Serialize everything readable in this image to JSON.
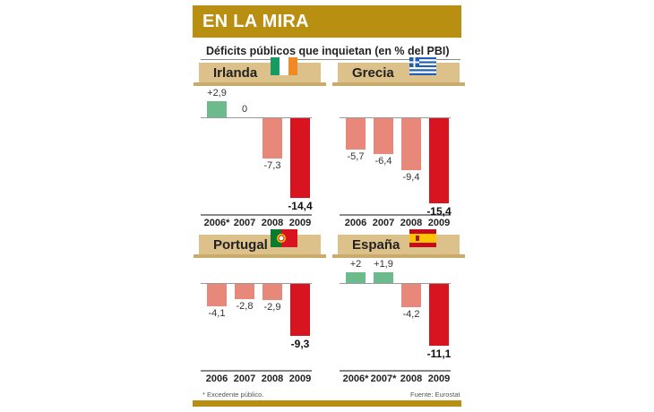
{
  "header": {
    "title": "EN LA MIRA"
  },
  "subtitle": "Déficits públicos que inquietan (en % del PBI)",
  "colors": {
    "header": "#b98f12",
    "banner": "#dcc18a",
    "surplus": "#6dbb8c",
    "deficit": "#e8887a",
    "deficit_2009": "#d7141f"
  },
  "chart_data": [
    {
      "type": "bar",
      "title": "Irlanda",
      "flag": "ireland-flag",
      "categories": [
        "2006*",
        "2007",
        "2008",
        "2009"
      ],
      "values": [
        2.9,
        0,
        -7.3,
        -14.4
      ],
      "labels": [
        "+2,9",
        "0",
        "-7,3",
        "-14,4"
      ]
    },
    {
      "type": "bar",
      "title": "Grecia",
      "flag": "greece-flag",
      "categories": [
        "2006",
        "2007",
        "2008",
        "2009"
      ],
      "values": [
        -5.7,
        -6.4,
        -9.4,
        -15.4
      ],
      "labels": [
        "-5,7",
        "-6,4",
        "-9,4",
        "-15,4"
      ]
    },
    {
      "type": "bar",
      "title": "Portugal",
      "flag": "portugal-flag",
      "categories": [
        "2006",
        "2007",
        "2008",
        "2009"
      ],
      "values": [
        -4.1,
        -2.8,
        -2.9,
        -9.3
      ],
      "labels": [
        "-4,1",
        "-2,8",
        "-2,9",
        "-9,3"
      ]
    },
    {
      "type": "bar",
      "title": "España",
      "flag": "spain-flag",
      "categories": [
        "2006*",
        "2007*",
        "2008",
        "2009"
      ],
      "values": [
        2,
        1.9,
        -4.2,
        -11.1
      ],
      "labels": [
        "+2",
        "+1,9",
        "-4,2",
        "-11,1"
      ]
    }
  ],
  "footnote": "* Excedente público.",
  "source": "Fuente: Eurostat"
}
